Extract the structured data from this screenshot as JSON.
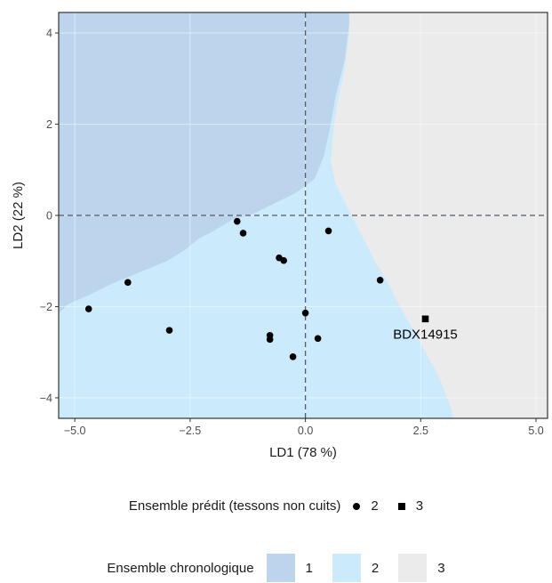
{
  "chart_data": {
    "type": "scatter",
    "xlabel": "LD1 (78 %)",
    "ylabel": "LD2 (22 %)",
    "xlim": [
      -5.35,
      5.25
    ],
    "ylim": [
      -4.45,
      4.45
    ],
    "x_ticks": [
      -5.0,
      -2.5,
      0.0,
      2.5,
      5.0
    ],
    "x_tick_labels": [
      "−5.0",
      "−2.5",
      "0.0",
      "2.5",
      "5.0"
    ],
    "y_ticks": [
      -4,
      -2,
      0,
      2,
      4
    ],
    "y_tick_labels": [
      "−4",
      "−2",
      "0",
      "2",
      "4"
    ],
    "reference_lines": {
      "x": 0,
      "y": 0,
      "style": "dashed"
    },
    "regions": [
      {
        "name": "1",
        "color": "#bcd4ec",
        "boundary_x": [
          -5.35,
          -5.15,
          -4.7,
          -4.2,
          -3.6,
          -3.0,
          -2.6,
          -2.3,
          -2.0,
          -1.6,
          -1.1,
          -0.6,
          -0.2,
          0.2,
          0.4,
          0.55,
          0.65,
          0.75,
          0.85,
          0.9,
          0.95,
          0.95
        ],
        "boundary_y": [
          -2.15,
          -1.95,
          -1.75,
          -1.5,
          -1.25,
          -1.0,
          -0.75,
          -0.5,
          -0.35,
          -0.1,
          0.05,
          0.3,
          0.5,
          0.8,
          1.3,
          2.0,
          2.6,
          3.0,
          3.4,
          3.8,
          4.2,
          4.45
        ]
      },
      {
        "name": "2",
        "color": "#cbeafc"
      },
      {
        "name": "3",
        "color": "#ebebeb",
        "boundary_x": [
          0.95,
          0.95,
          0.85,
          0.7,
          0.6,
          0.55,
          0.65,
          0.9,
          1.2,
          1.5,
          1.8,
          2.1,
          2.4,
          2.65,
          2.9,
          3.05,
          3.15,
          3.2
        ],
        "boundary_y": [
          4.45,
          4.0,
          3.2,
          2.5,
          1.8,
          1.2,
          0.7,
          0.2,
          -0.4,
          -1.0,
          -1.5,
          -2.1,
          -2.6,
          -3.1,
          -3.55,
          -3.95,
          -4.2,
          -4.45
        ]
      }
    ],
    "series": [
      {
        "name": "2",
        "marker": "circle",
        "points": [
          [
            -4.7,
            -2.05
          ],
          [
            -3.85,
            -1.47
          ],
          [
            -2.95,
            -2.52
          ],
          [
            -1.48,
            -0.13
          ],
          [
            -1.35,
            -0.39
          ],
          [
            -0.57,
            -0.93
          ],
          [
            -0.47,
            -0.99
          ],
          [
            0.5,
            -0.34
          ],
          [
            -0.77,
            -2.63
          ],
          [
            -0.77,
            -2.72
          ],
          [
            -0.27,
            -3.1
          ],
          [
            0.0,
            -2.14
          ],
          [
            0.27,
            -2.7
          ],
          [
            1.62,
            -1.42
          ]
        ]
      },
      {
        "name": "3",
        "marker": "square",
        "points": [
          [
            2.6,
            -2.27
          ]
        ],
        "labels": [
          "BDX14915"
        ]
      }
    ],
    "legends": [
      {
        "title": "Ensemble prédit (tessons non cuits)",
        "items": [
          {
            "label": "2",
            "key": "circle"
          },
          {
            "label": "3",
            "key": "square"
          }
        ],
        "placement": "bottom"
      },
      {
        "title": "Ensemble chronologique",
        "items": [
          {
            "label": "1",
            "color": "#bcd4ec"
          },
          {
            "label": "2",
            "color": "#cbeafc"
          },
          {
            "label": "3",
            "color": "#ebebeb"
          }
        ],
        "placement": "bottom"
      }
    ]
  }
}
